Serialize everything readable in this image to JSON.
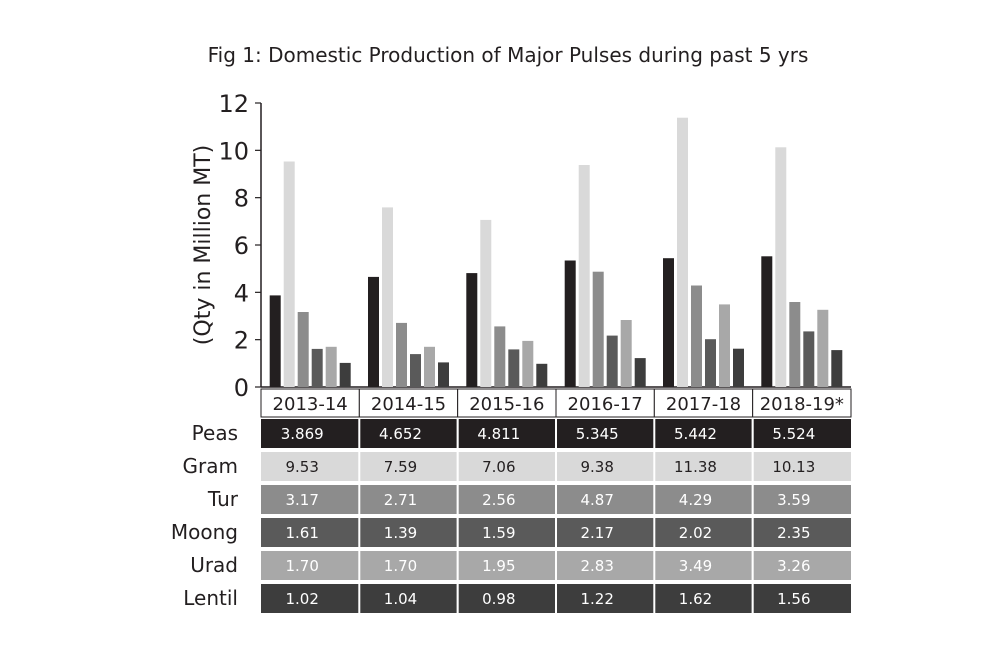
{
  "chart_data": {
    "type": "bar",
    "title": "Fig 1: Domestic Production of Major Pulses during past 5 yrs",
    "ylabel": "(Qty in Million MT)",
    "xlabel": "",
    "ylim": [
      0,
      12
    ],
    "yticks": [
      "0",
      "2",
      "4",
      "6",
      "8",
      "10",
      "12"
    ],
    "categories": [
      "2013-14",
      "2014-15",
      "2015-16",
      "2016-17",
      "2017-18",
      "2018-19*"
    ],
    "grid": false,
    "legend": "data table below chart",
    "series": [
      {
        "name": "Peas",
        "color": "#231f20",
        "text_color": "#ffffff",
        "values": [
          3.869,
          4.652,
          4.811,
          5.345,
          5.442,
          5.524
        ],
        "labels": [
          "3.869",
          "4.652",
          "4.811",
          "5.345",
          "5.442",
          "5.524"
        ]
      },
      {
        "name": "Gram",
        "color": "#d9d9d9",
        "text_color": "#231f20",
        "values": [
          9.53,
          7.59,
          7.06,
          9.38,
          11.38,
          10.13
        ],
        "labels": [
          "9.53",
          "7.59",
          "7.06",
          "9.38",
          "11.38",
          "10.13"
        ]
      },
      {
        "name": "Tur",
        "color": "#8c8c8c",
        "text_color": "#ffffff",
        "values": [
          3.17,
          2.71,
          2.56,
          4.87,
          4.29,
          3.59
        ],
        "labels": [
          "3.17",
          "2.71",
          "2.56",
          "4.87",
          "4.29",
          "3.59"
        ]
      },
      {
        "name": "Moong",
        "color": "#5a5a5a",
        "text_color": "#ffffff",
        "values": [
          1.61,
          1.39,
          1.59,
          2.17,
          2.02,
          2.35
        ],
        "labels": [
          "1.61",
          "1.39",
          "1.59",
          "2.17",
          "2.02",
          "2.35"
        ]
      },
      {
        "name": "Urad",
        "color": "#a8a8a8",
        "text_color": "#ffffff",
        "values": [
          1.7,
          1.7,
          1.95,
          2.83,
          3.49,
          3.26
        ],
        "labels": [
          "1.70",
          "1.70",
          "1.95",
          "2.83",
          "3.49",
          "3.26"
        ]
      },
      {
        "name": "Lentil",
        "color": "#3d3d3d",
        "text_color": "#ffffff",
        "values": [
          1.02,
          1.04,
          0.98,
          1.22,
          1.62,
          1.56
        ],
        "labels": [
          "1.02",
          "1.04",
          "0.98",
          "1.22",
          "1.62",
          "1.56"
        ]
      }
    ]
  }
}
